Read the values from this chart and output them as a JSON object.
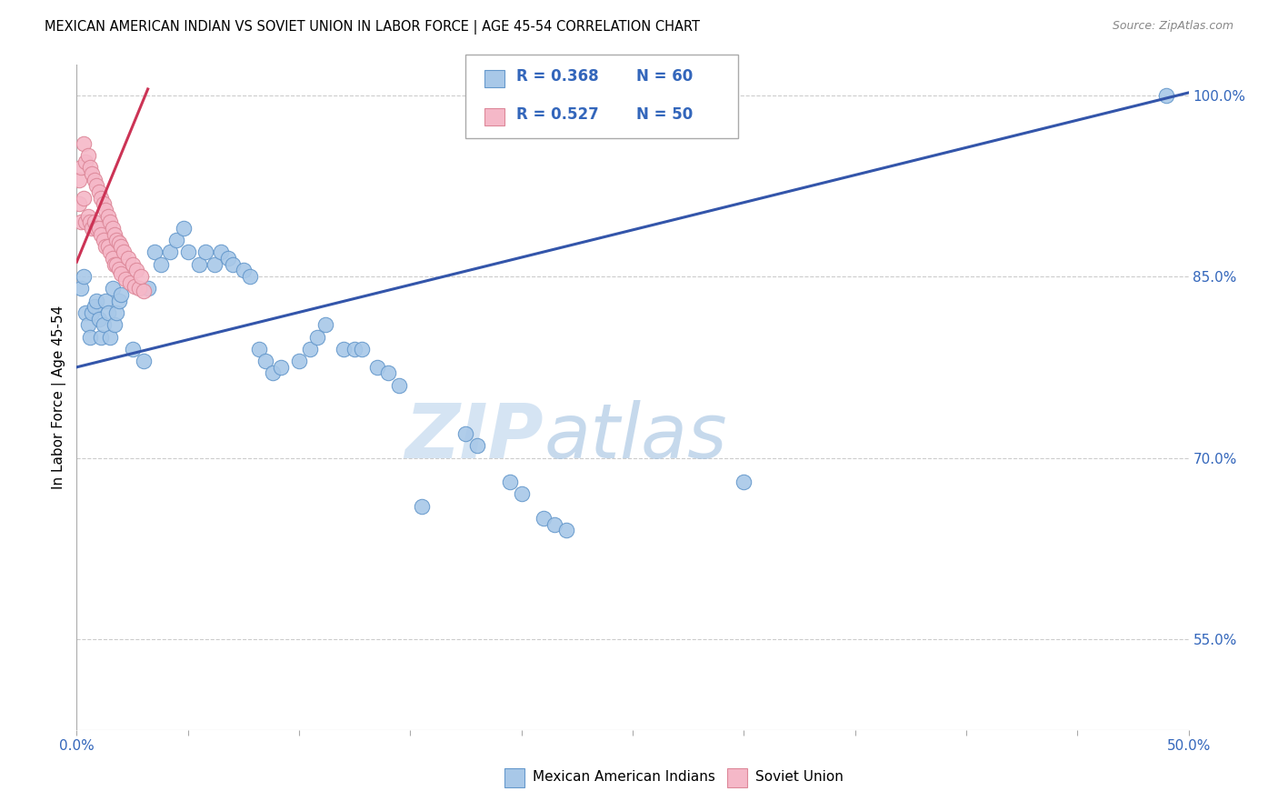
{
  "title": "MEXICAN AMERICAN INDIAN VS SOVIET UNION IN LABOR FORCE | AGE 45-54 CORRELATION CHART",
  "source": "Source: ZipAtlas.com",
  "ylabel": "In Labor Force | Age 45-54",
  "xlim": [
    0.0,
    0.5
  ],
  "ylim": [
    0.475,
    1.025
  ],
  "right_yticks": [
    1.0,
    0.85,
    0.7,
    0.55
  ],
  "right_yticklabels": [
    "100.0%",
    "85.0%",
    "70.0%",
    "55.0%"
  ],
  "legend_blue_r": "R = 0.368",
  "legend_blue_n": "N = 60",
  "legend_pink_r": "R = 0.527",
  "legend_pink_n": "N = 50",
  "blue_color": "#A8C8E8",
  "pink_color": "#F5B8C8",
  "blue_edge_color": "#6699CC",
  "pink_edge_color": "#DD8899",
  "blue_line_color": "#3355AA",
  "pink_line_color": "#CC3355",
  "watermark_zip": "ZIP",
  "watermark_atlas": "atlas",
  "blue_scatter_x": [
    0.002,
    0.003,
    0.004,
    0.005,
    0.006,
    0.007,
    0.008,
    0.009,
    0.01,
    0.011,
    0.012,
    0.013,
    0.014,
    0.015,
    0.016,
    0.017,
    0.018,
    0.019,
    0.02,
    0.025,
    0.03,
    0.032,
    0.035,
    0.038,
    0.042,
    0.045,
    0.048,
    0.05,
    0.055,
    0.058,
    0.062,
    0.065,
    0.068,
    0.07,
    0.075,
    0.078,
    0.082,
    0.085,
    0.088,
    0.092,
    0.1,
    0.105,
    0.108,
    0.112,
    0.12,
    0.125,
    0.128,
    0.135,
    0.14,
    0.145,
    0.155,
    0.175,
    0.18,
    0.195,
    0.2,
    0.21,
    0.215,
    0.22,
    0.3,
    0.49
  ],
  "blue_scatter_y": [
    0.84,
    0.85,
    0.82,
    0.81,
    0.8,
    0.82,
    0.825,
    0.83,
    0.815,
    0.8,
    0.81,
    0.83,
    0.82,
    0.8,
    0.84,
    0.81,
    0.82,
    0.83,
    0.835,
    0.79,
    0.78,
    0.84,
    0.87,
    0.86,
    0.87,
    0.88,
    0.89,
    0.87,
    0.86,
    0.87,
    0.86,
    0.87,
    0.865,
    0.86,
    0.855,
    0.85,
    0.79,
    0.78,
    0.77,
    0.775,
    0.78,
    0.79,
    0.8,
    0.81,
    0.79,
    0.79,
    0.79,
    0.775,
    0.77,
    0.76,
    0.66,
    0.72,
    0.71,
    0.68,
    0.67,
    0.65,
    0.645,
    0.64,
    0.68,
    1.0
  ],
  "pink_scatter_x": [
    0.001,
    0.001,
    0.002,
    0.002,
    0.003,
    0.003,
    0.004,
    0.004,
    0.005,
    0.005,
    0.006,
    0.006,
    0.007,
    0.007,
    0.008,
    0.008,
    0.009,
    0.009,
    0.01,
    0.01,
    0.011,
    0.011,
    0.012,
    0.012,
    0.013,
    0.013,
    0.014,
    0.014,
    0.015,
    0.015,
    0.016,
    0.016,
    0.017,
    0.017,
    0.018,
    0.018,
    0.019,
    0.019,
    0.02,
    0.02,
    0.021,
    0.022,
    0.023,
    0.024,
    0.025,
    0.026,
    0.027,
    0.028,
    0.029,
    0.03
  ],
  "pink_scatter_y": [
    0.93,
    0.91,
    0.94,
    0.895,
    0.96,
    0.915,
    0.945,
    0.895,
    0.95,
    0.9,
    0.94,
    0.895,
    0.935,
    0.89,
    0.93,
    0.895,
    0.925,
    0.89,
    0.92,
    0.89,
    0.915,
    0.885,
    0.91,
    0.88,
    0.905,
    0.875,
    0.9,
    0.875,
    0.895,
    0.87,
    0.89,
    0.865,
    0.885,
    0.86,
    0.88,
    0.86,
    0.878,
    0.856,
    0.875,
    0.852,
    0.87,
    0.848,
    0.865,
    0.845,
    0.86,
    0.842,
    0.855,
    0.84,
    0.85,
    0.838
  ],
  "blue_line_x": [
    0.0,
    0.5
  ],
  "blue_line_y": [
    0.775,
    1.002
  ],
  "pink_line_x": [
    0.0,
    0.032
  ],
  "pink_line_y": [
    0.862,
    1.005
  ]
}
